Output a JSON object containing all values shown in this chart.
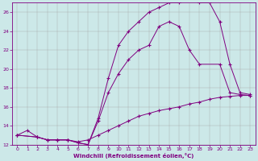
{
  "xlabel": "Windchill (Refroidissement éolien,°C)",
  "background_color": "#cce8e8",
  "line_color": "#800080",
  "grid_color": "#aaaaaa",
  "xlim": [
    -0.5,
    23.5
  ],
  "ylim": [
    12,
    27
  ],
  "yticks": [
    12,
    14,
    16,
    18,
    20,
    22,
    24,
    26
  ],
  "xticks": [
    0,
    1,
    2,
    3,
    4,
    5,
    6,
    7,
    8,
    9,
    10,
    11,
    12,
    13,
    14,
    15,
    16,
    17,
    18,
    19,
    20,
    21,
    22,
    23
  ],
  "curve1_x": [
    0,
    1,
    2,
    3,
    4,
    5,
    6,
    7,
    8,
    9,
    10,
    11,
    12,
    13,
    14,
    15,
    16,
    17,
    18,
    19,
    20,
    21,
    22,
    23
  ],
  "curve1_y": [
    13.0,
    13.5,
    12.8,
    12.5,
    12.5,
    12.5,
    12.3,
    12.5,
    13.0,
    13.5,
    14.0,
    14.5,
    15.0,
    15.3,
    15.6,
    15.8,
    16.0,
    16.3,
    16.5,
    16.8,
    17.0,
    17.1,
    17.2,
    17.2
  ],
  "curve2_x": [
    0,
    2,
    3,
    4,
    5,
    6,
    7,
    8,
    9,
    10,
    11,
    12,
    13,
    14,
    15,
    16,
    17,
    18,
    20,
    21,
    22,
    23
  ],
  "curve2_y": [
    13.0,
    12.8,
    12.5,
    12.5,
    12.5,
    12.2,
    12.0,
    14.5,
    17.5,
    19.5,
    21.0,
    22.0,
    22.5,
    24.5,
    25.0,
    24.5,
    22.0,
    20.5,
    20.5,
    17.5,
    17.3,
    17.2
  ],
  "curve3_x": [
    0,
    2,
    3,
    4,
    5,
    6,
    7,
    8,
    9,
    10,
    11,
    12,
    13,
    14,
    15,
    16,
    17,
    18,
    19,
    20,
    21,
    22,
    23
  ],
  "curve3_y": [
    13.0,
    12.8,
    12.5,
    12.5,
    12.5,
    12.2,
    12.0,
    14.8,
    19.0,
    22.5,
    24.0,
    25.0,
    26.0,
    26.5,
    27.0,
    27.0,
    27.3,
    27.0,
    27.0,
    25.0,
    20.5,
    17.5,
    17.3
  ]
}
